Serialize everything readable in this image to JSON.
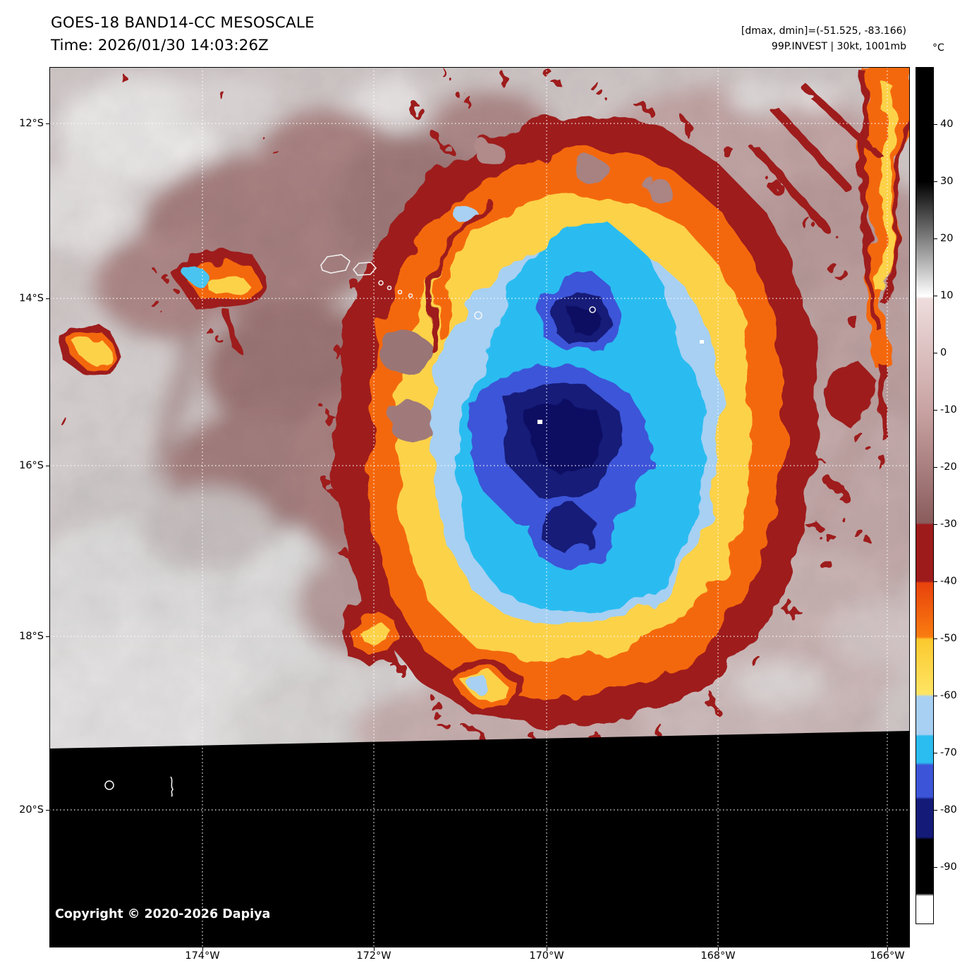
{
  "header": {
    "title": "GOES-18 BAND14-CC MESOSCALE",
    "time_label": "Time: 2026/01/30 14:03:26Z",
    "dmax_dmin": "[dmax, dmin]=(-51.525, -83.166)",
    "storm_info": "99P.INVEST | 30kt, 1001mb"
  },
  "axes": {
    "lat_labels": [
      "12°S",
      "14°S",
      "16°S",
      "18°S",
      "20°S"
    ],
    "lon_labels": [
      "174°W",
      "172°W",
      "170°W",
      "168°W",
      "166°W"
    ]
  },
  "colorbar": {
    "unit": "°C",
    "tick_labels": [
      "40",
      "30",
      "20",
      "10",
      "0",
      "-10",
      "-20",
      "-30",
      "-40",
      "-50",
      "-60",
      "-70",
      "-80",
      "-90"
    ],
    "scale_top_c": 50,
    "scale_bottom_c": -100,
    "segments": [
      {
        "range_c": "50 to 30",
        "color": "#000000"
      },
      {
        "range_c": "30 to 10",
        "color": "#000000 to #ffffff grayscale"
      },
      {
        "range_c": "10 to -30",
        "color": "#eedcdc to #8a5c5c"
      },
      {
        "range_c": "-30 to -40",
        "color": "#9e1b1b"
      },
      {
        "range_c": "-40 to -50",
        "color": "#f4680e"
      },
      {
        "range_c": "-50 to -60",
        "color": "#fcd24a"
      },
      {
        "range_c": "-60 to -67",
        "color": "#a7d0f3"
      },
      {
        "range_c": "-67 to -72",
        "color": "#2bbcf0"
      },
      {
        "range_c": "-72 to -78",
        "color": "#3c55d8"
      },
      {
        "range_c": "-78 to -85",
        "color": "#131a78"
      },
      {
        "range_c": "-85 to -95",
        "color": "#000000"
      },
      {
        "range_c": "-95 to -100",
        "color": "#ffffff"
      }
    ]
  },
  "footer": {
    "copyright": "Copyright © 2020-2026 Dapiya"
  }
}
